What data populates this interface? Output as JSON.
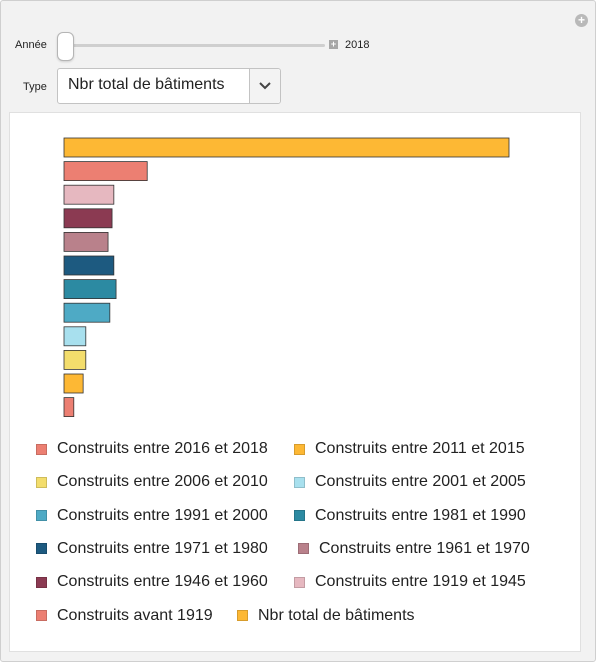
{
  "controls": {
    "year_label": "Année",
    "year_value": "2018",
    "year_slider_fraction": 0,
    "type_label": "Type",
    "type_value": "Nbr total de bâtiments"
  },
  "chart_data": {
    "type": "bar",
    "orientation": "horizontal",
    "xlim": [
      0,
      100
    ],
    "series": [
      {
        "name": "Nbr total de bâtiments",
        "value": 100,
        "color": "#fdb834"
      },
      {
        "name": "Construits avant 1919",
        "value": 18.7,
        "color": "#ec7f72"
      },
      {
        "name": "Construits entre 1919 et 1945",
        "value": 11.2,
        "color": "#e6b8c0"
      },
      {
        "name": "Construits entre 1946 et 1960",
        "value": 10.8,
        "color": "#8b3a52"
      },
      {
        "name": "Construits entre 1961 et 1970",
        "value": 9.9,
        "color": "#b9818b"
      },
      {
        "name": "Construits entre 1971 et 1980",
        "value": 11.2,
        "color": "#1d5a80"
      },
      {
        "name": "Construits entre 1981 et 1990",
        "value": 11.7,
        "color": "#2c8aa2"
      },
      {
        "name": "Construits entre 1991 et 2000",
        "value": 10.3,
        "color": "#4eaac5"
      },
      {
        "name": "Construits entre 2001 et 2005",
        "value": 4.9,
        "color": "#a8e0ee"
      },
      {
        "name": "Construits entre 2006 et 2010",
        "value": 4.9,
        "color": "#f3dd6c"
      },
      {
        "name": "Construits entre 2011 et 2015",
        "value": 4.3,
        "color": "#fdb834"
      },
      {
        "name": "Construits entre 2016 et 2018",
        "value": 2.2,
        "color": "#ec7f72"
      }
    ],
    "legend": [
      {
        "label": "Construits entre 2016 et 2018",
        "color": "#ec7f72"
      },
      {
        "label": "Construits entre 2011 et 2015",
        "color": "#fdb834"
      },
      {
        "label": "Construits entre 2006 et 2010",
        "color": "#f3dd6c"
      },
      {
        "label": "Construits entre 2001 et 2005",
        "color": "#a8e0ee"
      },
      {
        "label": "Construits entre 1991 et 2000",
        "color": "#4eaac5"
      },
      {
        "label": "Construits entre 1981 et 1990",
        "color": "#2c8aa2"
      },
      {
        "label": "Construits entre 1971 et 1980",
        "color": "#1d5a80"
      },
      {
        "label": "Construits entre 1961 et 1970",
        "color": "#b9818b"
      },
      {
        "label": "Construits entre 1946 et 1960",
        "color": "#8b3a52"
      },
      {
        "label": "Construits entre 1919 et 1945",
        "color": "#e6b8c0"
      },
      {
        "label": "Construits avant 1919",
        "color": "#ec7f72"
      },
      {
        "label": "Nbr total de bâtiments",
        "color": "#fdb834"
      }
    ]
  }
}
